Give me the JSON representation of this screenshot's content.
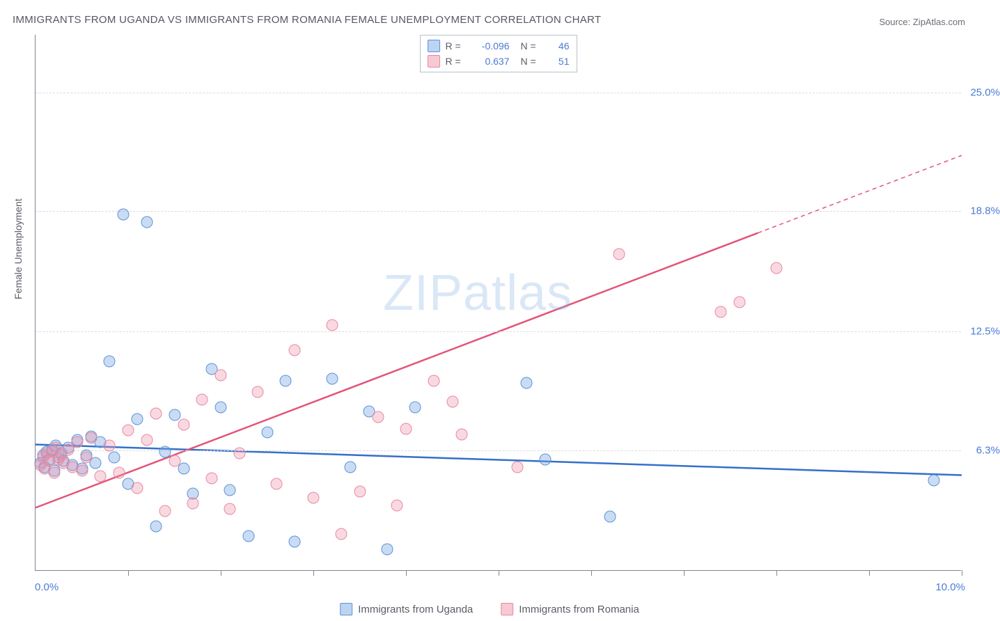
{
  "title": "IMMIGRANTS FROM UGANDA VS IMMIGRANTS FROM ROMANIA FEMALE UNEMPLOYMENT CORRELATION CHART",
  "source": "Source: ZipAtlas.com",
  "ylabel": "Female Unemployment",
  "watermark_a": "ZIP",
  "watermark_b": "atlas",
  "chart": {
    "type": "scatter",
    "xlim": [
      0,
      10
    ],
    "ylim": [
      0,
      28
    ],
    "xtick_labels": [
      "0.0%",
      "10.0%"
    ],
    "ytick_values": [
      6.3,
      12.5,
      18.8,
      25.0
    ],
    "ytick_labels": [
      "6.3%",
      "12.5%",
      "18.8%",
      "25.0%"
    ],
    "grid_color": "#d8dbe0",
    "axis_color": "#7f8591",
    "background_color": "#ffffff",
    "series": [
      {
        "name": "Immigrants from Uganda",
        "color_fill": "rgba(122,168,228,0.4)",
        "color_stroke": "#5a94d8",
        "trend_color": "#3470c9",
        "R": "-0.096",
        "N": "46",
        "trend": {
          "x1": 0,
          "y1": 6.6,
          "x2": 10,
          "y2": 5.0,
          "dash_from_x": null
        },
        "points": [
          [
            0.05,
            5.6
          ],
          [
            0.08,
            6.0
          ],
          [
            0.1,
            5.4
          ],
          [
            0.12,
            6.2
          ],
          [
            0.15,
            5.8
          ],
          [
            0.18,
            6.3
          ],
          [
            0.2,
            5.2
          ],
          [
            0.22,
            6.5
          ],
          [
            0.25,
            5.9
          ],
          [
            0.28,
            6.1
          ],
          [
            0.3,
            5.7
          ],
          [
            0.35,
            6.4
          ],
          [
            0.4,
            5.5
          ],
          [
            0.45,
            6.8
          ],
          [
            0.5,
            5.3
          ],
          [
            0.55,
            6.0
          ],
          [
            0.6,
            7.0
          ],
          [
            0.65,
            5.6
          ],
          [
            0.7,
            6.7
          ],
          [
            0.8,
            10.9
          ],
          [
            0.85,
            5.9
          ],
          [
            0.95,
            18.6
          ],
          [
            1.0,
            4.5
          ],
          [
            1.1,
            7.9
          ],
          [
            1.2,
            18.2
          ],
          [
            1.3,
            2.3
          ],
          [
            1.4,
            6.2
          ],
          [
            1.5,
            8.1
          ],
          [
            1.6,
            5.3
          ],
          [
            1.7,
            4.0
          ],
          [
            1.9,
            10.5
          ],
          [
            2.0,
            8.5
          ],
          [
            2.1,
            4.2
          ],
          [
            2.3,
            1.8
          ],
          [
            2.5,
            7.2
          ],
          [
            2.7,
            9.9
          ],
          [
            2.8,
            1.5
          ],
          [
            3.2,
            10.0
          ],
          [
            3.4,
            5.4
          ],
          [
            3.6,
            8.3
          ],
          [
            3.8,
            1.1
          ],
          [
            4.1,
            8.5
          ],
          [
            5.3,
            9.8
          ],
          [
            5.5,
            5.8
          ],
          [
            6.2,
            2.8
          ],
          [
            9.7,
            4.7
          ]
        ]
      },
      {
        "name": "Immigrants from Romania",
        "color_fill": "rgba(238,147,169,0.35)",
        "color_stroke": "#e9889f",
        "trend_color": "#e25578",
        "R": "0.637",
        "N": "51",
        "trend": {
          "x1": 0,
          "y1": 3.3,
          "x2": 10,
          "y2": 21.7,
          "dash_from_x": 7.8
        },
        "points": [
          [
            0.05,
            5.5
          ],
          [
            0.08,
            5.9
          ],
          [
            0.1,
            5.3
          ],
          [
            0.12,
            6.1
          ],
          [
            0.15,
            5.7
          ],
          [
            0.18,
            6.2
          ],
          [
            0.2,
            5.1
          ],
          [
            0.22,
            6.4
          ],
          [
            0.25,
            5.8
          ],
          [
            0.28,
            6.0
          ],
          [
            0.3,
            5.6
          ],
          [
            0.35,
            6.3
          ],
          [
            0.4,
            5.4
          ],
          [
            0.45,
            6.7
          ],
          [
            0.5,
            5.2
          ],
          [
            0.55,
            5.9
          ],
          [
            0.6,
            6.9
          ],
          [
            0.7,
            4.9
          ],
          [
            0.8,
            6.5
          ],
          [
            0.9,
            5.1
          ],
          [
            1.0,
            7.3
          ],
          [
            1.1,
            4.3
          ],
          [
            1.2,
            6.8
          ],
          [
            1.3,
            8.2
          ],
          [
            1.4,
            3.1
          ],
          [
            1.5,
            5.7
          ],
          [
            1.6,
            7.6
          ],
          [
            1.7,
            3.5
          ],
          [
            1.8,
            8.9
          ],
          [
            1.9,
            4.8
          ],
          [
            2.0,
            10.2
          ],
          [
            2.1,
            3.2
          ],
          [
            2.2,
            6.1
          ],
          [
            2.4,
            9.3
          ],
          [
            2.6,
            4.5
          ],
          [
            2.8,
            11.5
          ],
          [
            3.0,
            3.8
          ],
          [
            3.2,
            12.8
          ],
          [
            3.3,
            1.9
          ],
          [
            3.5,
            4.1
          ],
          [
            3.7,
            8.0
          ],
          [
            3.9,
            3.4
          ],
          [
            4.0,
            7.4
          ],
          [
            4.3,
            9.9
          ],
          [
            4.5,
            8.8
          ],
          [
            4.6,
            7.1
          ],
          [
            5.2,
            5.4
          ],
          [
            6.3,
            16.5
          ],
          [
            7.4,
            13.5
          ],
          [
            7.6,
            14.0
          ],
          [
            8.0,
            15.8
          ]
        ]
      }
    ]
  },
  "legend_bottom": [
    {
      "swatch": "blue",
      "label": "Immigrants from Uganda"
    },
    {
      "swatch": "pink",
      "label": "Immigrants from Romania"
    }
  ],
  "legend_top_labels": {
    "R": "R =",
    "N": "N ="
  }
}
